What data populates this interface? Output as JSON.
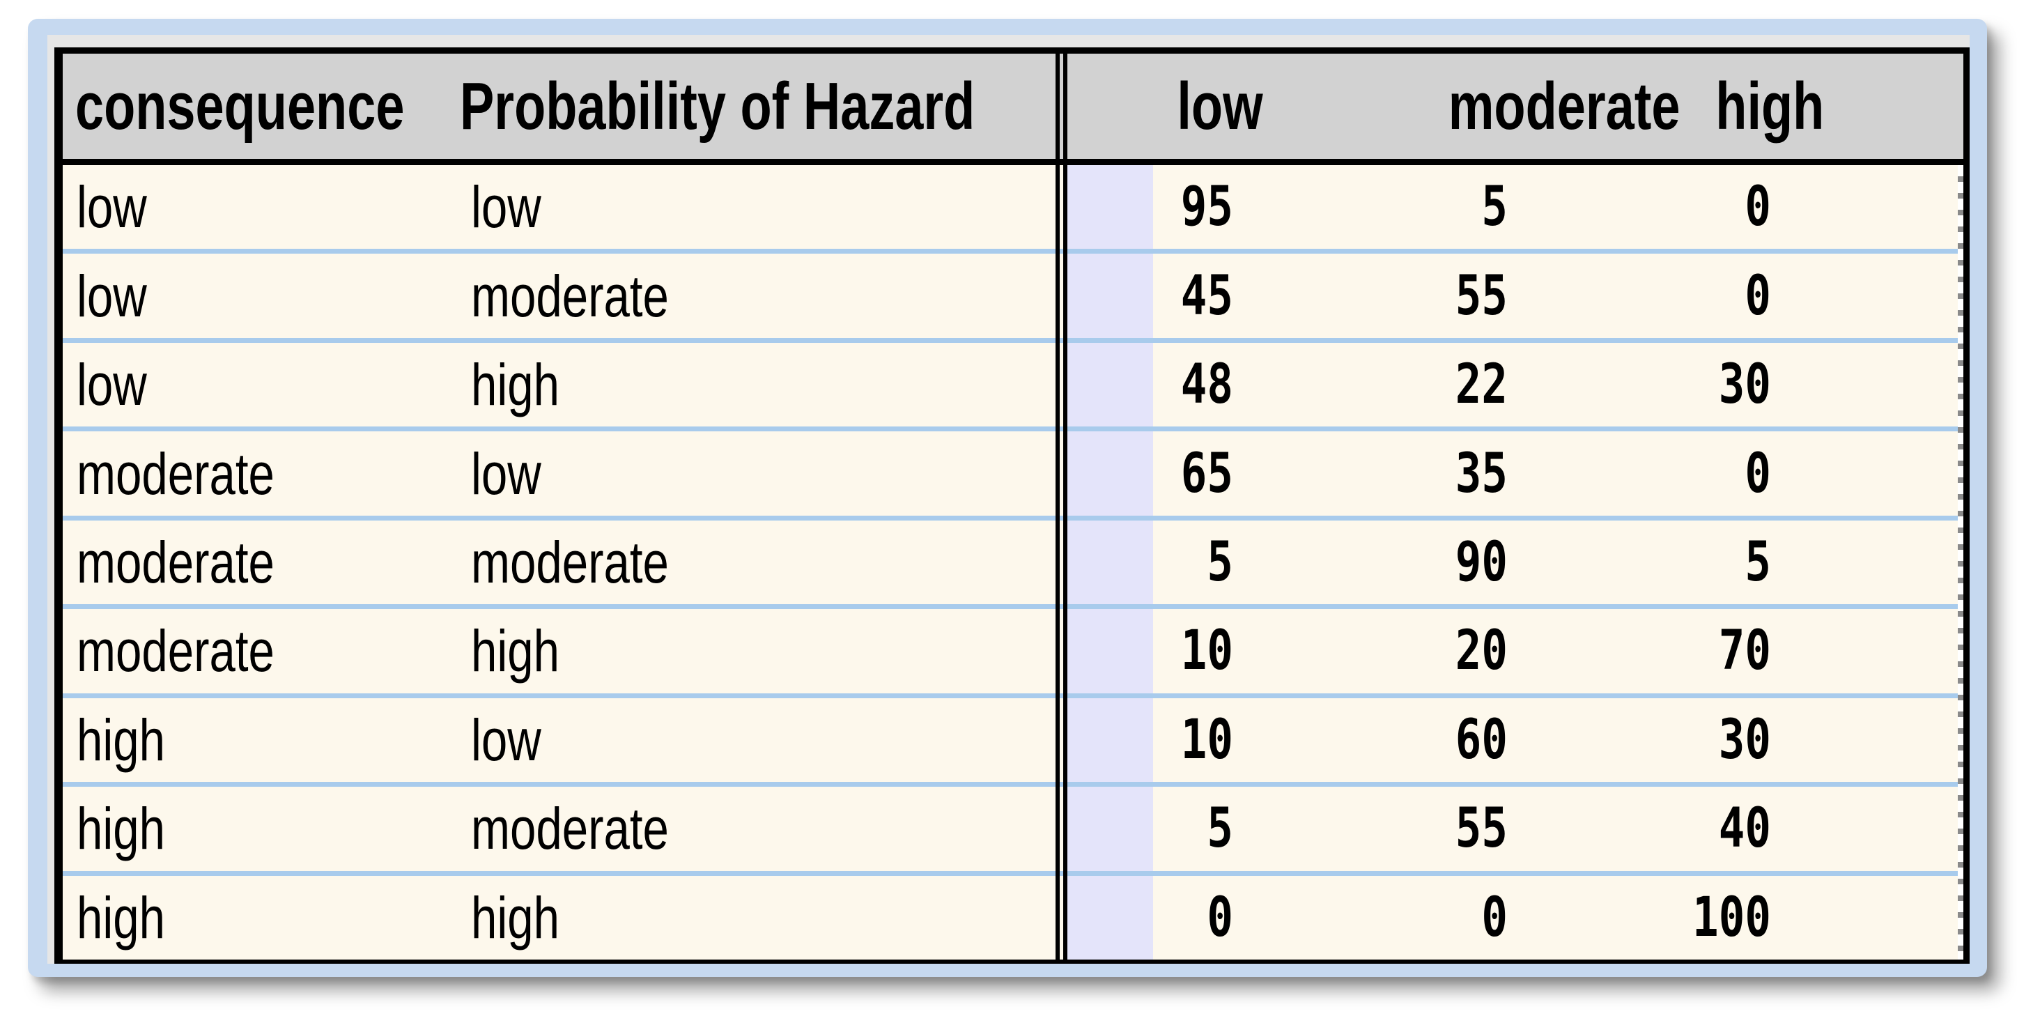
{
  "window": {
    "description": "Conditional probability table (CPT) editor grid",
    "colors": {
      "frame_blue": "#c6d9f0",
      "strip_gray": "#e6e6e6",
      "header_gray": "#d2d2d2",
      "row_cream": "#fdf8ec",
      "row_separator_blue": "#a8cbec",
      "selected_column_lavender": "#e4e4fa",
      "border_black": "#000000"
    }
  },
  "table": {
    "header": {
      "consequence": "consequence",
      "hazard": "Probability of Hazard",
      "states": [
        "low",
        "moderate",
        "high"
      ]
    },
    "rows": [
      {
        "consequence": "low",
        "hazard": "low",
        "low": "95",
        "moderate": "5",
        "high": "0"
      },
      {
        "consequence": "low",
        "hazard": "moderate",
        "low": "45",
        "moderate": "55",
        "high": "0"
      },
      {
        "consequence": "low",
        "hazard": "high",
        "low": "48",
        "moderate": "22",
        "high": "30"
      },
      {
        "consequence": "moderate",
        "hazard": "low",
        "low": "65",
        "moderate": "35",
        "high": "0"
      },
      {
        "consequence": "moderate",
        "hazard": "moderate",
        "low": "5",
        "moderate": "90",
        "high": "5"
      },
      {
        "consequence": "moderate",
        "hazard": "high",
        "low": "10",
        "moderate": "20",
        "high": "70"
      },
      {
        "consequence": "high",
        "hazard": "low",
        "low": "10",
        "moderate": "60",
        "high": "30"
      },
      {
        "consequence": "high",
        "hazard": "moderate",
        "low": "5",
        "moderate": "55",
        "high": "40"
      },
      {
        "consequence": "high",
        "hazard": "high",
        "low": "0",
        "moderate": "0",
        "high": "100"
      }
    ]
  }
}
